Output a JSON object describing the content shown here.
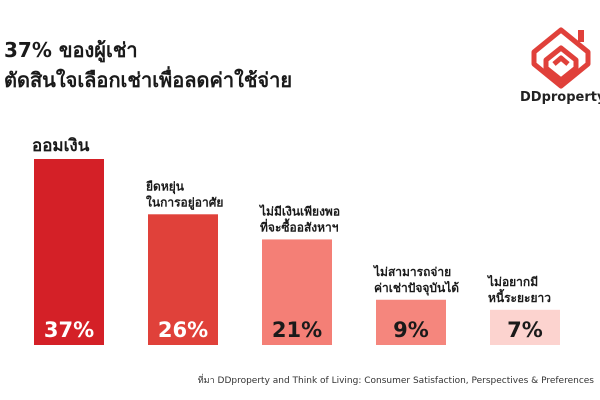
{
  "header": {
    "title_line1": "37% ของผู้เช่า",
    "title_line2": "ตัดสินใจเลือกเช่าเพื่อลดค่าใช้จ่าย"
  },
  "brand": {
    "name": "DDproperty",
    "color": "#e0403a"
  },
  "chart_data": {
    "type": "bar",
    "categories": [
      [
        "ออมเงิน"
      ],
      [
        "ยืดหยุ่น",
        "ในการอยู่อาศัย"
      ],
      [
        "ไม่มีเงินเพียงพอ",
        "ที่จะซื้ออสังหาฯ"
      ],
      [
        "ไม่สามารถจ่าย",
        "ค่าเช่าปัจจุบันได้"
      ],
      [
        "ไม่อยากมี",
        "หนี้ระยะยาว"
      ]
    ],
    "values": [
      37,
      26,
      21,
      9,
      7
    ],
    "value_labels": [
      "37%",
      "26%",
      "21%",
      "9%",
      "7%"
    ],
    "colors": [
      "#d42027",
      "#e0413a",
      "#f47f76",
      "#f5867d",
      "#fcd3cf"
    ],
    "label_colors": [
      "#ffffff",
      "#ffffff",
      "#1a1a1a",
      "#1a1a1a",
      "#1a1a1a"
    ],
    "ylim": [
      0,
      37
    ]
  },
  "footer": {
    "source": "ที่มา DDproperty and Think of Living: Consumer Satisfaction, Perspectives & Preferences"
  }
}
